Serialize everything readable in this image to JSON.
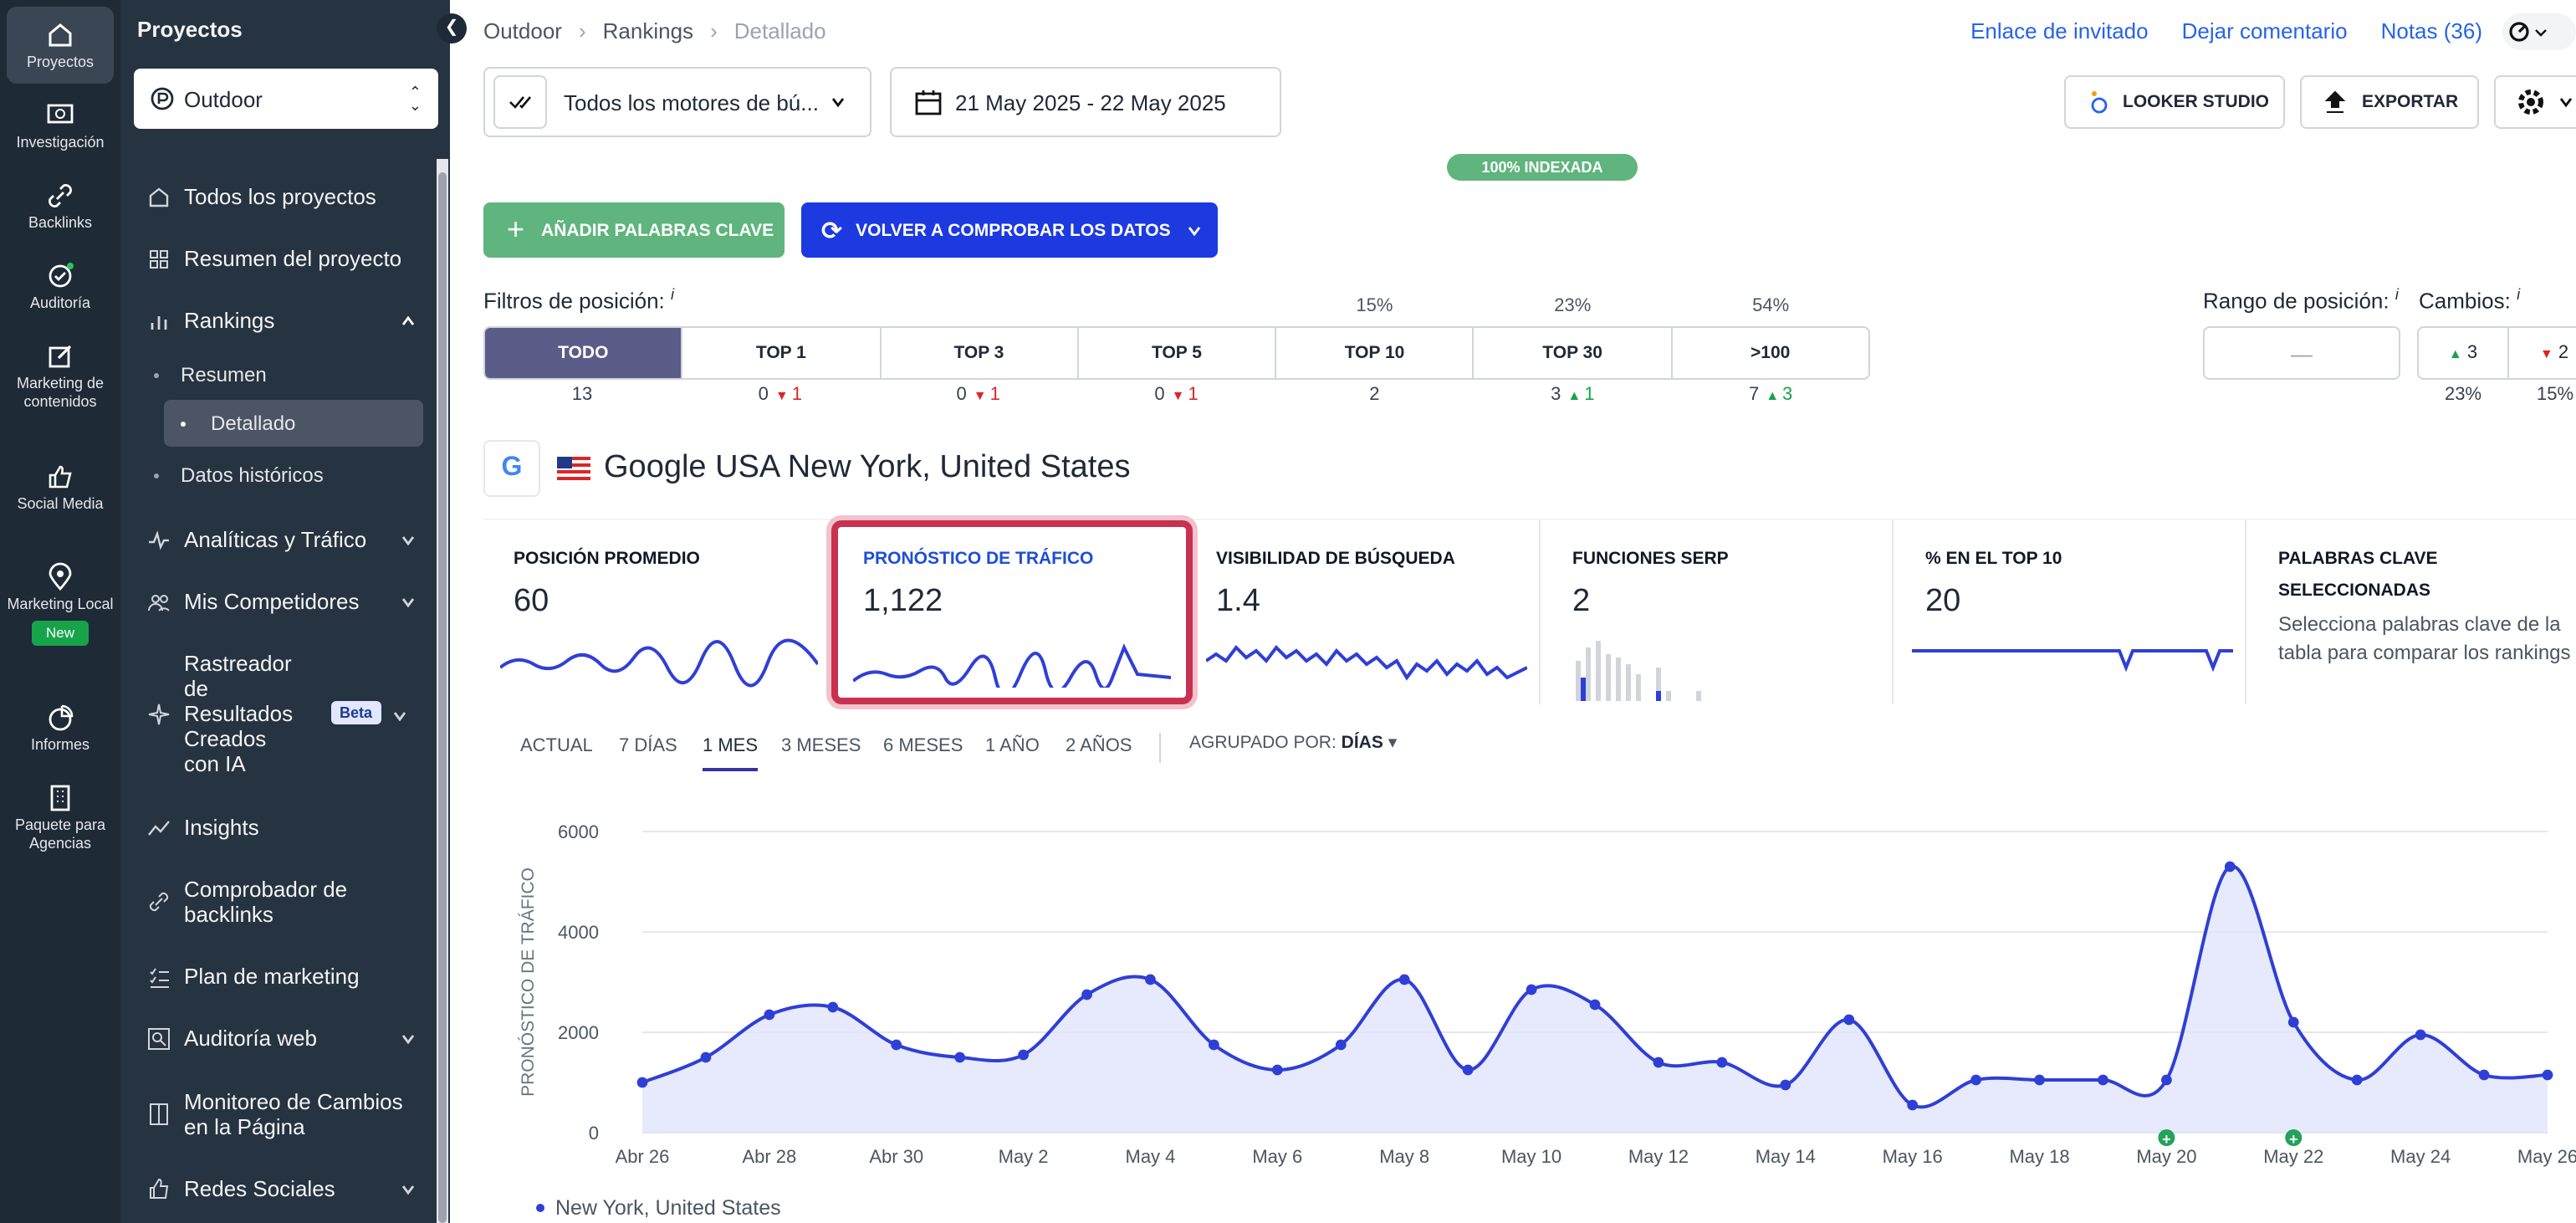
{
  "rail": {
    "items": [
      {
        "label": "Proyectos",
        "icon": "home-icon"
      },
      {
        "label": "Investigación",
        "icon": "search-screen-icon"
      },
      {
        "label": "Backlinks",
        "icon": "link-icon"
      },
      {
        "label": "Auditoría",
        "icon": "audit-check-icon"
      },
      {
        "label": "Marketing de contenidos",
        "icon": "edit-icon"
      },
      {
        "label": "Social Media",
        "icon": "thumbs-up-icon"
      },
      {
        "label": "Marketing Local",
        "icon": "pin-icon"
      },
      {
        "label": "Informes",
        "icon": "pie-chart-icon"
      },
      {
        "label": "Paquete para Agencias",
        "icon": "building-icon"
      }
    ],
    "new_badge": "New"
  },
  "sidebar": {
    "title": "Proyectos",
    "project": "Outdoor",
    "items": [
      "Todos los proyectos",
      "Resumen del proyecto",
      "Rankings",
      "Analíticas y Tráfico",
      "Mis Competidores",
      "Rastreador de Resultados Creados con IA",
      "Insights",
      "Comprobador de backlinks",
      "Plan de marketing",
      "Auditoría web",
      "Monitoreo de Cambios en la Página",
      "Redes Sociales"
    ],
    "subitems": [
      "Resumen",
      "Detallado",
      "Datos históricos"
    ],
    "beta": "Beta"
  },
  "breadcrumb": [
    "Outdoor",
    "Rankings",
    "Detallado"
  ],
  "toplinks": [
    "Enlace de invitado",
    "Dejar comentario",
    "Notas (36)"
  ],
  "toolbar": {
    "engine": "Todos los motores de bú...",
    "dates": "21 May 2025 - 22 May 2025",
    "looker": "LOOKER STUDIO",
    "export": "EXPORTAR",
    "indexed": "100% INDEXADA"
  },
  "actions": {
    "add": "AÑADIR PALABRAS CLAVE",
    "recheck": "VOLVER A COMPROBAR LOS DATOS"
  },
  "filters": {
    "label": "Filtros de posición:",
    "info": "i",
    "tabs": [
      "TODO",
      "TOP 1",
      "TOP 3",
      "TOP 5",
      "TOP 10",
      "TOP 30",
      ">100"
    ],
    "pcts": [
      "",
      "",
      "",
      "",
      "15%",
      "23%",
      "54%"
    ],
    "counts": [
      {
        "n": "13"
      },
      {
        "n": "0",
        "d": "1"
      },
      {
        "n": "0",
        "d": "1"
      },
      {
        "n": "0",
        "d": "1"
      },
      {
        "n": "2"
      },
      {
        "n": "3",
        "u": "1"
      },
      {
        "n": "7",
        "u": "3"
      }
    ],
    "range_label": "Rango de posición:",
    "range_value": "—",
    "changes_label": "Cambios:",
    "up": "3",
    "down": "2",
    "up_pct": "23%",
    "down_pct": "15%"
  },
  "engine": {
    "name": "Google USA New York, United States"
  },
  "cards": [
    {
      "title": "POSICIÓN PROMEDIO",
      "value": "60"
    },
    {
      "title": "PRONÓSTICO DE TRÁFICO",
      "value": "1,122"
    },
    {
      "title": "VISIBILIDAD DE BÚSQUEDA",
      "value": "1.4"
    },
    {
      "title": "FUNCIONES SERP",
      "value": "2"
    },
    {
      "title": "% EN EL TOP 10",
      "value": "20"
    },
    {
      "title": "PALABRAS CLAVE SELECCIONADAS",
      "desc": "Selecciona palabras clave de la tabla para comparar los rankings"
    }
  ],
  "ranges": [
    "ACTUAL",
    "7 DÍAS",
    "1 MES",
    "3 MESES",
    "6 MESES",
    "1 AÑO",
    "2 AÑOS"
  ],
  "group": {
    "label": "AGRUPADO POR:",
    "value": "DÍAS"
  },
  "colors": {
    "accent": "#2f3fd6",
    "highlight": "#c8314f",
    "primary_green": "#5fb57d",
    "primary_blue": "#1d3ae0"
  },
  "chart_data": {
    "type": "area",
    "ylabel": "PRONÓSTICO DE TRÁFICO",
    "ylim": [
      0,
      6000
    ],
    "yticks": [
      "6000",
      "4000",
      "2000",
      "0"
    ],
    "xticks": [
      "Abr 26",
      "Abr 28",
      "Abr 30",
      "May 2",
      "May 4",
      "May 6",
      "May 8",
      "May 10",
      "May 12",
      "May 14",
      "May 16",
      "May 18",
      "May 20",
      "May 22",
      "May 24",
      "May 26"
    ],
    "series": [
      {
        "name": "New York, United States",
        "values": [
          1000,
          1500,
          2350,
          2500,
          1750,
          1500,
          1550,
          2750,
          3050,
          1750,
          1250,
          1750,
          3050,
          1250,
          2850,
          2550,
          1400,
          1400,
          950,
          2250,
          550,
          1050,
          1050,
          1050,
          1050,
          5300,
          2200,
          1050,
          1950,
          1150,
          1150
        ]
      }
    ],
    "markers": [
      "May 20",
      "May 22"
    ]
  }
}
